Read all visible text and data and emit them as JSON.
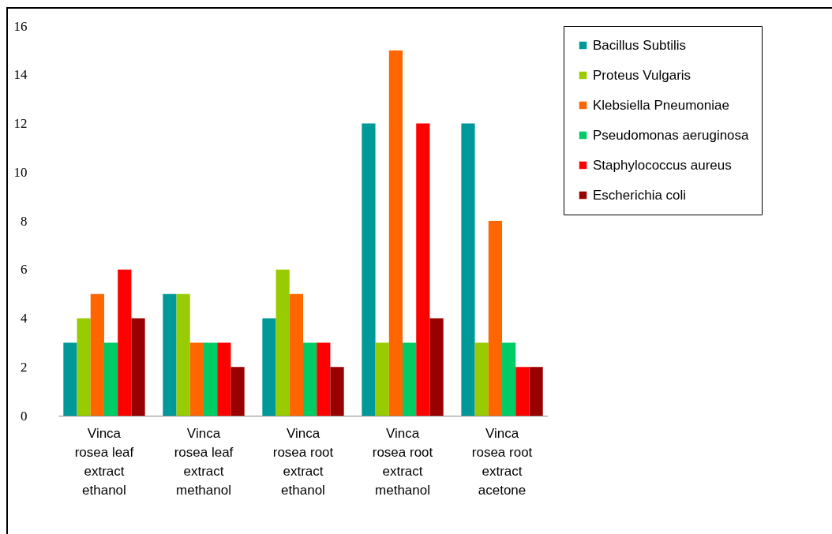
{
  "chart_data": {
    "type": "bar",
    "categories": [
      "Vinca rosea leaf extract ethanol",
      "Vinca rosea leaf extract methanol",
      "Vinca rosea root extract ethanol",
      "Vinca rosea root extract methanol",
      "Vinca rosea root extract acetone"
    ],
    "series": [
      {
        "name": "Bacillus Subtilis",
        "color": "#009999",
        "values": [
          3,
          5,
          4,
          12,
          12
        ]
      },
      {
        "name": "Proteus Vulgaris",
        "color": "#99cc00",
        "values": [
          4,
          5,
          6,
          3,
          3
        ]
      },
      {
        "name": "Klebsiella Pneumoniae",
        "color": "#ff6600",
        "values": [
          5,
          3,
          5,
          15,
          8
        ]
      },
      {
        "name": "Pseudomonas aeruginosa",
        "color": "#00cc66",
        "values": [
          3,
          3,
          3,
          3,
          3
        ]
      },
      {
        "name": "Staphylococcus aureus",
        "color": "#ff0000",
        "values": [
          6,
          3,
          3,
          12,
          2
        ]
      },
      {
        "name": "Escherichia coli",
        "color": "#990000",
        "values": [
          4,
          2,
          2,
          4,
          2
        ]
      }
    ],
    "ylim": [
      0,
      16
    ],
    "yticks": [
      0,
      2,
      4,
      6,
      8,
      10,
      12,
      14,
      16
    ],
    "grid": false,
    "legend": "right"
  }
}
